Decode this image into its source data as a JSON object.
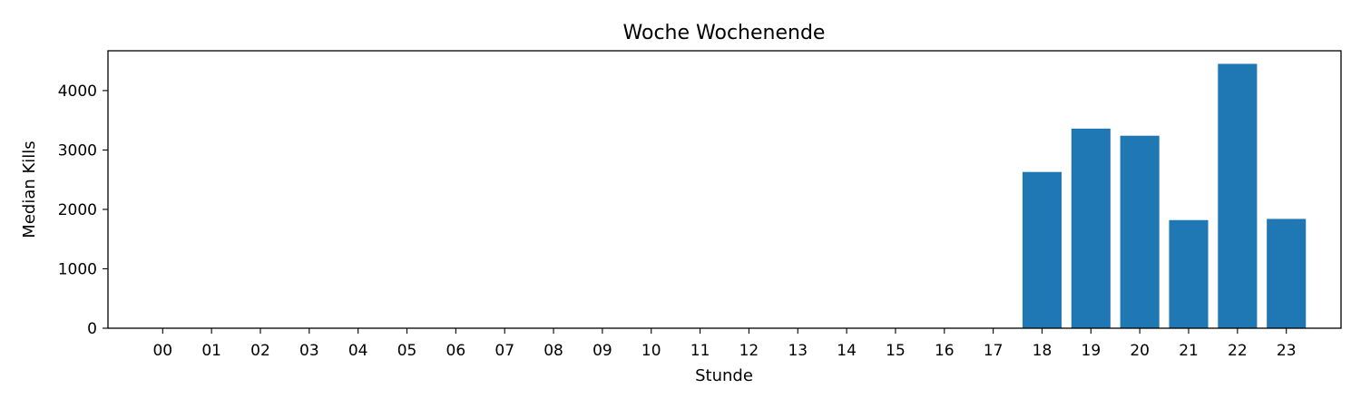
{
  "chart_data": {
    "type": "bar",
    "title": "Woche Wochenende",
    "xlabel": "Stunde",
    "ylabel": "Median Kills",
    "categories": [
      "00",
      "01",
      "02",
      "03",
      "04",
      "05",
      "06",
      "07",
      "08",
      "09",
      "10",
      "11",
      "12",
      "13",
      "14",
      "15",
      "16",
      "17",
      "18",
      "19",
      "20",
      "21",
      "22",
      "23"
    ],
    "values": [
      0,
      0,
      0,
      0,
      0,
      0,
      0,
      0,
      0,
      0,
      0,
      0,
      0,
      0,
      0,
      0,
      0,
      0,
      2630,
      3360,
      3240,
      1820,
      4450,
      1840
    ],
    "ylim": [
      0,
      4670
    ],
    "yticks": [
      0,
      1000,
      2000,
      3000,
      4000
    ],
    "grid": false,
    "bar_color": "#1f77b4"
  }
}
